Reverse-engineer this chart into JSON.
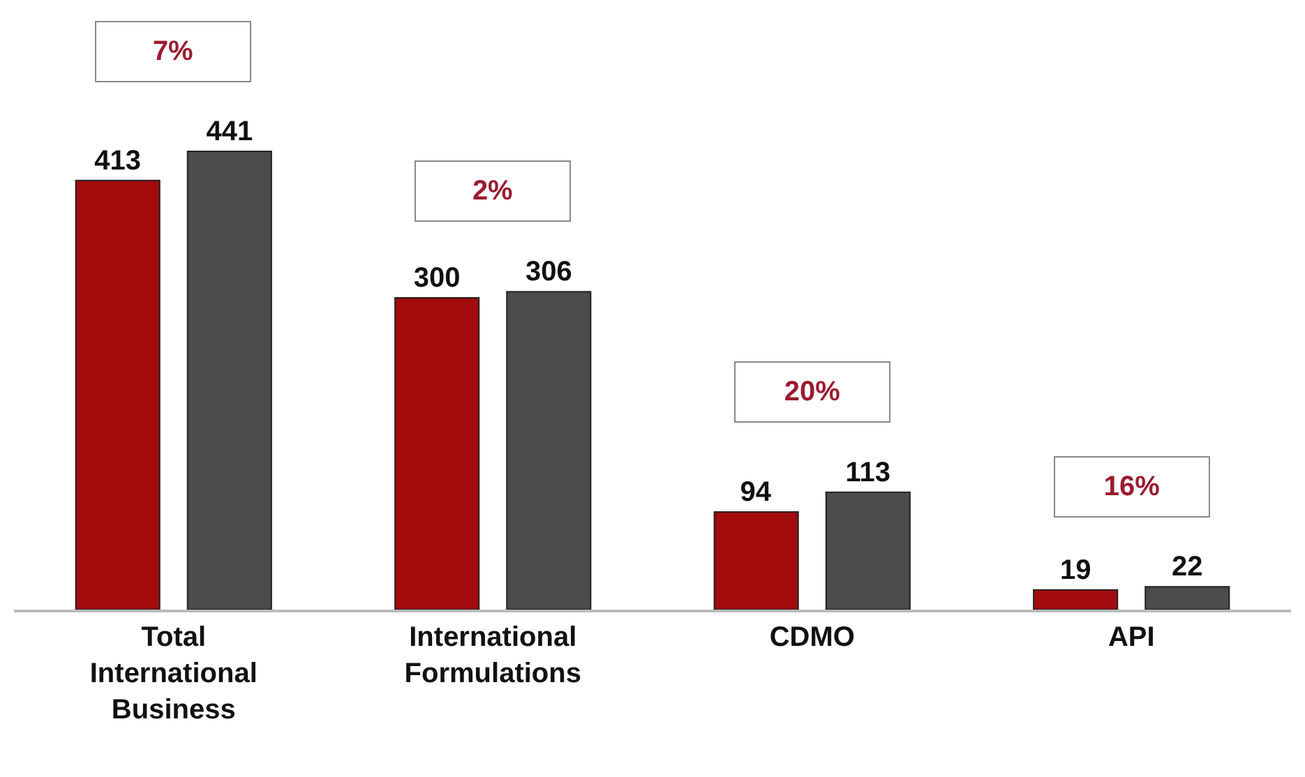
{
  "chart_data": {
    "type": "bar",
    "categories": [
      "Total International Business",
      "International Formulations",
      "CDMO",
      "API"
    ],
    "series": [
      {
        "color": "#a30b0d",
        "values": [
          413,
          300,
          94,
          19
        ]
      },
      {
        "color": "#4b4b4b",
        "values": [
          441,
          306,
          113,
          22
        ]
      }
    ],
    "data_labels": true,
    "annotations": [
      "7%",
      "2%",
      "20%",
      "16%"
    ]
  }
}
